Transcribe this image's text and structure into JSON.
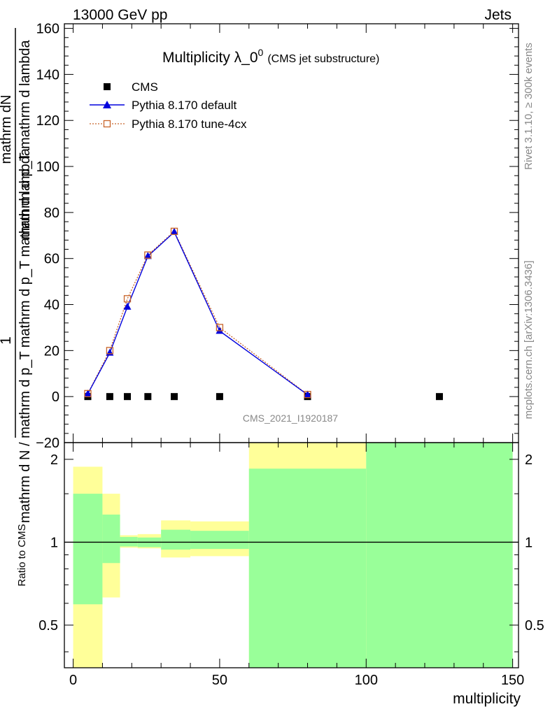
{
  "header": {
    "left": "13000 GeV pp",
    "right": "Jets"
  },
  "side_labels": {
    "rivet": "Rivet 3.1.10, ≥ 300k events",
    "mcplots": "mcplots.cern.ch [arXiv:1306.3436]"
  },
  "watermark": "CMS_2021_I1920187",
  "colors": {
    "cms": "#000000",
    "pythia_default": "#0000dd",
    "pythia_tune": "#c8642a",
    "band_inner": "#99ff99",
    "band_outer": "#ffff99"
  },
  "chart_data": [
    {
      "type": "line",
      "title": "Multiplicity λ_0",
      "title_sup": "0",
      "title_suffix": "(CMS jet substructure)",
      "xlabel": "multiplicity",
      "ylabel_top": "1",
      "ylabel_mid": "mathrm dN",
      "ylabel_num2": "mathrm d p_T mathrm d lambda",
      "ylabel_den": "mathrm d N / mathrm d p_T mathrm d p_T mathrm d lambda",
      "xlim": [
        -3,
        152
      ],
      "ylim": [
        -20,
        162
      ],
      "yticks": [
        -20,
        0,
        20,
        40,
        60,
        80,
        100,
        120,
        140,
        160
      ],
      "legend_position": "top-left",
      "series": [
        {
          "name": "CMS",
          "style": "marker-square",
          "x": [
            5,
            12.5,
            18.5,
            25.5,
            34.5,
            50,
            80,
            125
          ],
          "y": [
            0,
            0,
            0,
            0,
            0,
            0,
            0,
            0
          ]
        },
        {
          "name": "Pythia 8.170 default",
          "style": "line-triangle",
          "x": [
            5,
            12.5,
            18.5,
            25.5,
            34.5,
            50,
            80
          ],
          "y": [
            1.2,
            19,
            39,
            61,
            71.5,
            28.5,
            0.8
          ]
        },
        {
          "name": "Pythia 8.170 tune-4cx",
          "style": "dotted-open-square",
          "x": [
            5,
            12.5,
            18.5,
            25.5,
            34.5,
            50,
            80
          ],
          "y": [
            1.3,
            20,
            42.5,
            61.5,
            71.8,
            30,
            0.9
          ]
        }
      ]
    },
    {
      "type": "area",
      "ylabel": "Ratio to CMS",
      "xlim": [
        -3,
        152
      ],
      "ylim": [
        0.35,
        2.3
      ],
      "log_scale_y": true,
      "xticks": [
        0,
        50,
        100,
        150
      ],
      "xtick_labels": [
        "0",
        "50",
        "100",
        "150"
      ],
      "yticks": [
        0.5,
        1,
        2
      ],
      "ytick_labels": [
        "0.5",
        "1",
        "2"
      ],
      "reference_line": 1,
      "bands": [
        {
          "x0": 0,
          "x1": 10,
          "inner_lo": 0.595,
          "inner_hi": 1.5,
          "outer_lo": 0.35,
          "outer_hi": 1.88
        },
        {
          "x0": 10,
          "x1": 16,
          "inner_lo": 0.84,
          "inner_hi": 1.26,
          "outer_lo": 0.63,
          "outer_hi": 1.5
        },
        {
          "x0": 16,
          "x1": 22,
          "inner_lo": 0.965,
          "inner_hi": 1.045,
          "outer_lo": 0.955,
          "outer_hi": 1.06
        },
        {
          "x0": 22,
          "x1": 30,
          "inner_lo": 0.96,
          "inner_hi": 1.04,
          "outer_lo": 0.95,
          "outer_hi": 1.07
        },
        {
          "x0": 30,
          "x1": 40,
          "inner_lo": 0.94,
          "inner_hi": 1.11,
          "outer_lo": 0.88,
          "outer_hi": 1.2
        },
        {
          "x0": 40,
          "x1": 60,
          "inner_lo": 0.945,
          "inner_hi": 1.1,
          "outer_lo": 0.89,
          "outer_hi": 1.19
        },
        {
          "x0": 60,
          "x1": 100,
          "inner_lo": 0.35,
          "inner_hi": 1.85,
          "outer_lo": 0.35,
          "outer_hi": 2.3
        },
        {
          "x0": 100,
          "x1": 150,
          "inner_lo": 0.35,
          "inner_hi": 2.3,
          "outer_lo": 0.35,
          "outer_hi": 2.3
        }
      ]
    }
  ]
}
